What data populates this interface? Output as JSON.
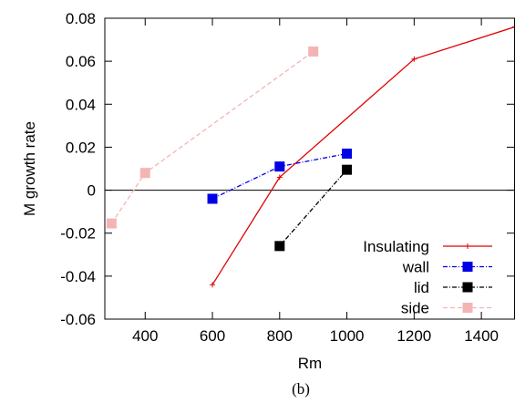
{
  "chart_data": {
    "type": "line",
    "title": "",
    "xlabel": "Rm",
    "ylabel": "M growth rate",
    "caption": "(b)",
    "xlim": [
      280,
      1500
    ],
    "ylim": [
      -0.06,
      0.08
    ],
    "xticks": [
      400,
      600,
      800,
      1000,
      1200,
      1400
    ],
    "xtick_labels": [
      "400",
      "600",
      "800",
      "1000",
      "1200",
      "1400"
    ],
    "yticks": [
      -0.06,
      -0.04,
      -0.02,
      0,
      0.02,
      0.04,
      0.06,
      0.08
    ],
    "ytick_labels": [
      "-0.06",
      "-0.04",
      "-0.02",
      "0",
      "0.02",
      "0.04",
      "0.06",
      "0.08"
    ],
    "zero_line": true,
    "grid": false,
    "legend_position": "bottom-right",
    "series": [
      {
        "name": "Insulating",
        "color": "#e00000",
        "dash": "solid",
        "marker": "plus",
        "points": [
          [
            600,
            -0.044
          ],
          [
            800,
            0.006
          ],
          [
            1200,
            0.061
          ],
          [
            1500,
            0.076
          ]
        ]
      },
      {
        "name": "wall",
        "color": "#0000e6",
        "dash": "dashdot",
        "marker": "square",
        "points": [
          [
            600,
            -0.004
          ],
          [
            800,
            0.011
          ],
          [
            1000,
            0.017
          ]
        ]
      },
      {
        "name": "lid",
        "color": "#000000",
        "dash": "dashdot",
        "marker": "square",
        "points": [
          [
            800,
            -0.026
          ],
          [
            1000,
            0.0095
          ]
        ]
      },
      {
        "name": "side",
        "color": "#f4b4b4",
        "dash": "dashed",
        "marker": "square",
        "points": [
          [
            300,
            -0.0155
          ],
          [
            400,
            0.008
          ],
          [
            900,
            0.0645
          ]
        ]
      }
    ]
  }
}
